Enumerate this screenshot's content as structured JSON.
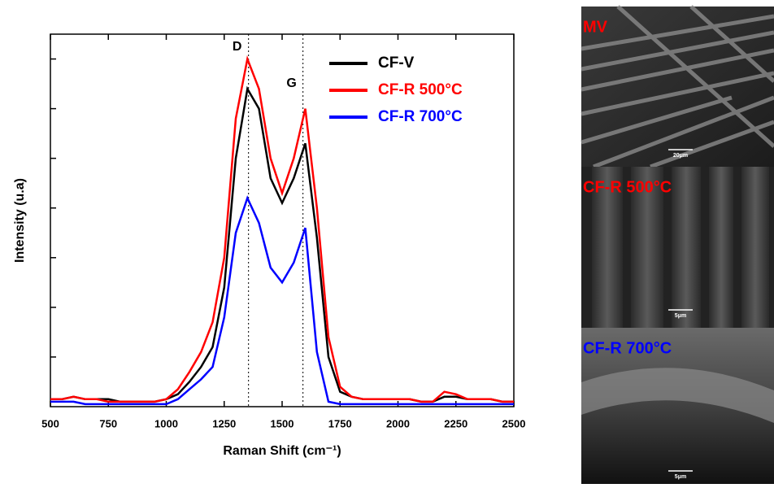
{
  "chart_data": {
    "type": "line",
    "xlabel": "Raman Shift (cm⁻¹)",
    "ylabel": "Intensity (u.a)",
    "x": [
      500,
      550,
      600,
      650,
      700,
      750,
      800,
      850,
      900,
      950,
      1000,
      1050,
      1100,
      1150,
      1200,
      1250,
      1300,
      1350,
      1400,
      1450,
      1500,
      1550,
      1600,
      1650,
      1700,
      1750,
      1800,
      1850,
      1900,
      1950,
      2000,
      2050,
      2100,
      2150,
      2200,
      2250,
      2300,
      2350,
      2400,
      2450,
      2500
    ],
    "series": [
      {
        "name": "CF-V",
        "color": "#000000",
        "values": [
          0.15,
          0.15,
          0.2,
          0.15,
          0.15,
          0.15,
          0.1,
          0.1,
          0.1,
          0.1,
          0.15,
          0.25,
          0.5,
          0.8,
          1.2,
          2.4,
          5.0,
          6.4,
          6.0,
          4.6,
          4.1,
          4.6,
          5.3,
          3.4,
          1.0,
          0.3,
          0.2,
          0.15,
          0.15,
          0.15,
          0.15,
          0.15,
          0.1,
          0.1,
          0.2,
          0.2,
          0.15,
          0.15,
          0.15,
          0.1,
          0.1
        ]
      },
      {
        "name": "CF-R 500°C",
        "color": "#ff0000",
        "values": [
          0.15,
          0.15,
          0.2,
          0.15,
          0.15,
          0.1,
          0.1,
          0.1,
          0.1,
          0.1,
          0.15,
          0.35,
          0.7,
          1.1,
          1.7,
          3.0,
          5.8,
          7.0,
          6.4,
          5.0,
          4.3,
          5.0,
          6.0,
          4.0,
          1.4,
          0.4,
          0.2,
          0.15,
          0.15,
          0.15,
          0.15,
          0.15,
          0.1,
          0.1,
          0.3,
          0.25,
          0.15,
          0.15,
          0.15,
          0.1,
          0.1
        ]
      },
      {
        "name": "CF-R 700°C",
        "color": "#0000ff",
        "values": [
          0.1,
          0.1,
          0.1,
          0.05,
          0.05,
          0.05,
          0.05,
          0.05,
          0.05,
          0.05,
          0.05,
          0.15,
          0.35,
          0.55,
          0.8,
          1.8,
          3.5,
          4.2,
          3.7,
          2.8,
          2.5,
          2.9,
          3.6,
          1.1,
          0.1,
          0.05,
          0.05,
          0.05,
          0.05,
          0.05,
          0.05,
          0.05,
          0.05,
          0.05,
          0.05,
          0.05,
          0.05,
          0.05,
          0.05,
          0.05,
          0.05
        ]
      }
    ],
    "xlim": [
      500,
      2500
    ],
    "xticks": [
      500,
      750,
      1000,
      1250,
      1500,
      1750,
      2000,
      2250,
      2500
    ],
    "ylim": [
      0,
      7.5
    ],
    "yticks": [
      1,
      2,
      3,
      4,
      5,
      6,
      7
    ],
    "annotations": [
      {
        "label": "D",
        "x": 1355
      },
      {
        "label": "G",
        "x": 1590
      }
    ],
    "legend": "upper right"
  },
  "images": [
    {
      "label": "MV",
      "color": "#ff0000",
      "scale": "20μm"
    },
    {
      "label": "CF-R 500°C",
      "color": "#ff0000",
      "scale": "5μm"
    },
    {
      "label": "CF-R 700°C",
      "color": "#0000ff",
      "scale": "5μm"
    }
  ]
}
